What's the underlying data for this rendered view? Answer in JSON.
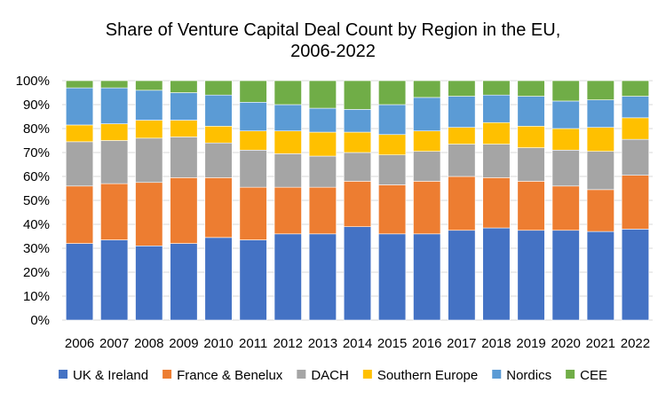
{
  "chart_data": {
    "type": "bar",
    "stacked": true,
    "percent_stacked": true,
    "title_lines": [
      "Share of Venture Capital Deal Count by Region in the EU,",
      "2006-2022"
    ],
    "xlabel": "",
    "ylabel": "",
    "ylim": [
      0,
      100
    ],
    "y_ticks": [
      "0%",
      "10%",
      "20%",
      "30%",
      "40%",
      "50%",
      "60%",
      "70%",
      "80%",
      "90%",
      "100%"
    ],
    "grid": true,
    "legend_position": "bottom",
    "categories": [
      "2006",
      "2007",
      "2008",
      "2009",
      "2010",
      "2011",
      "2012",
      "2013",
      "2014",
      "2015",
      "2016",
      "2017",
      "2018",
      "2019",
      "2020",
      "2021",
      "2022"
    ],
    "series": [
      {
        "name": "UK & Ireland",
        "color": "#4472C4",
        "values": [
          32,
          33.5,
          31,
          32,
          34.5,
          33.5,
          36,
          36,
          39,
          36,
          36,
          37.5,
          38.5,
          37.5,
          37.5,
          37,
          38
        ]
      },
      {
        "name": "France & Benelux",
        "color": "#ED7D31",
        "values": [
          24,
          23.5,
          26.5,
          27.5,
          25,
          22,
          19.5,
          19.5,
          19,
          20.5,
          22,
          22.5,
          21,
          20.5,
          18.5,
          17.5,
          22.5
        ]
      },
      {
        "name": "DACH",
        "color": "#A5A5A5",
        "values": [
          18.5,
          18,
          18.5,
          17,
          14.5,
          15.5,
          14,
          13,
          12,
          12.5,
          12.5,
          13.5,
          14,
          14,
          15,
          16,
          15
        ]
      },
      {
        "name": "Southern Europe",
        "color": "#FFC000",
        "values": [
          7,
          7,
          7.5,
          7,
          7,
          8,
          9.5,
          10,
          8.5,
          8.5,
          8.5,
          7,
          9,
          9,
          9,
          10,
          9
        ]
      },
      {
        "name": "Nordics",
        "color": "#5B9BD5",
        "values": [
          15.5,
          15,
          12.5,
          11.5,
          13,
          12,
          11,
          10,
          9.5,
          12.5,
          14,
          13,
          11.5,
          12.5,
          11.5,
          11.5,
          9
        ]
      },
      {
        "name": "CEE",
        "color": "#70AD47",
        "values": [
          3,
          3,
          4,
          5,
          6,
          9,
          10,
          11.5,
          12,
          10,
          7,
          6.5,
          6,
          6.5,
          8.5,
          8,
          6.5
        ]
      }
    ]
  }
}
